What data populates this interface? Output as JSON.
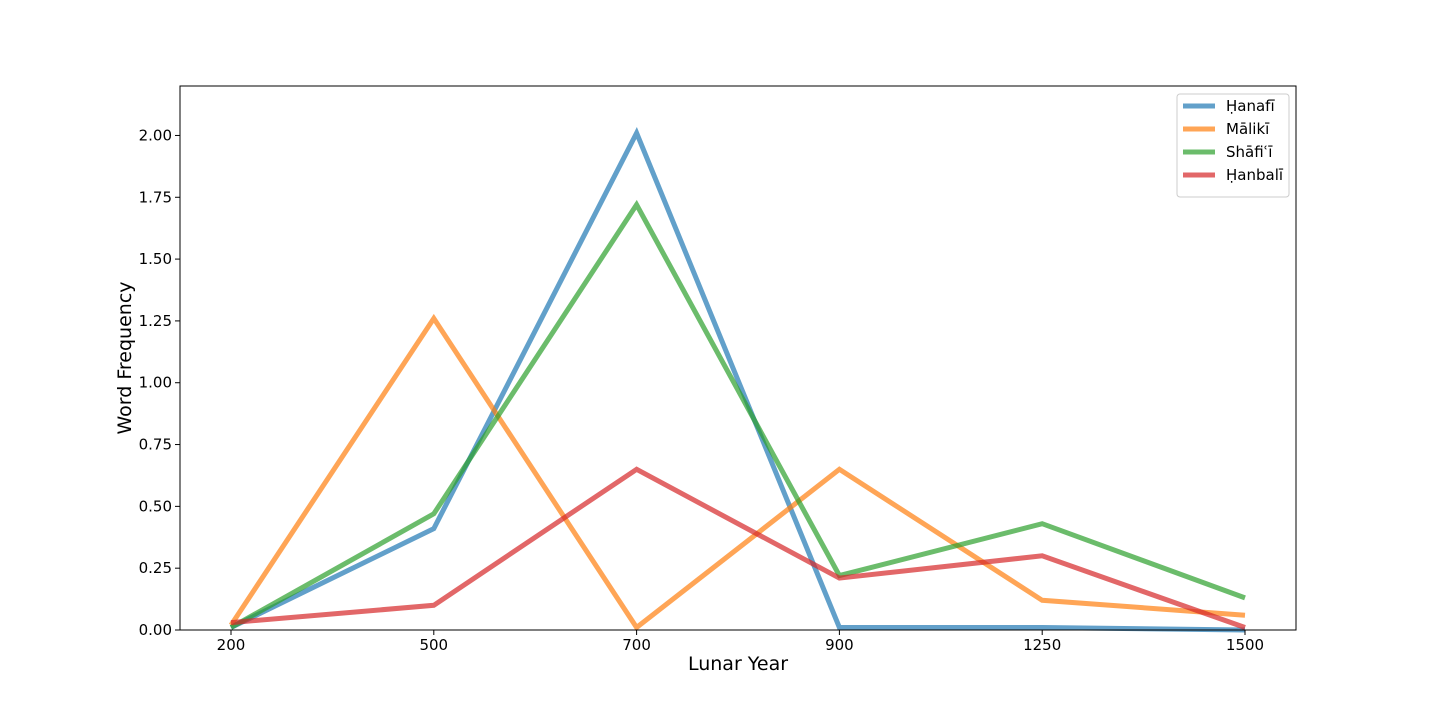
{
  "chart_data": {
    "type": "line",
    "title": "",
    "xlabel": "Lunar Year",
    "ylabel": "Word Frequency",
    "categories": [
      "200",
      "500",
      "700",
      "900",
      "1250",
      "1500"
    ],
    "ylim": [
      0,
      2.2
    ],
    "yticks": [
      "0.00",
      "0.25",
      "0.50",
      "0.75",
      "1.00",
      "1.25",
      "1.50",
      "1.75",
      "2.00"
    ],
    "grid": false,
    "legend_position": "top-right",
    "series": [
      {
        "name": "Ḥanafī",
        "color": "#1f77b4",
        "values": [
          0.01,
          0.41,
          2.01,
          0.01,
          0.01,
          0.0
        ]
      },
      {
        "name": "Mālikī",
        "color": "#ff7f0e",
        "values": [
          0.02,
          1.26,
          0.01,
          0.65,
          0.12,
          0.06
        ]
      },
      {
        "name": "Shāfiʿī",
        "color": "#2ca02c",
        "values": [
          0.01,
          0.47,
          1.72,
          0.22,
          0.43,
          0.13
        ]
      },
      {
        "name": "Ḥanbalī",
        "color": "#d62728",
        "values": [
          0.03,
          0.1,
          0.65,
          0.21,
          0.3,
          0.01
        ]
      }
    ]
  }
}
